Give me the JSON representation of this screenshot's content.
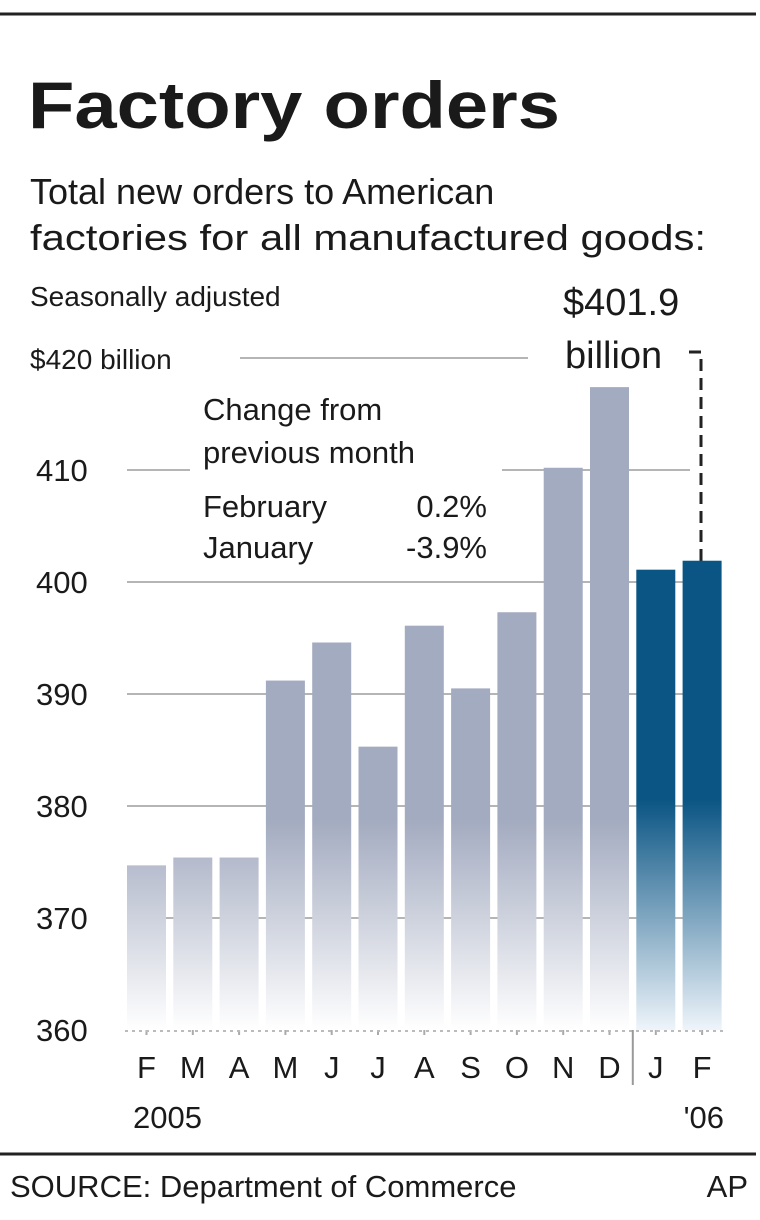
{
  "header": {
    "title": "Factory orders",
    "subtitle_line1": "Total new orders to American",
    "subtitle_line2": "factories for all manufactured goods:",
    "note": "Seasonally adjusted"
  },
  "callout": {
    "value": "$401.9",
    "unit": "billion"
  },
  "change_box": {
    "heading_line1": "Change from",
    "heading_line2": "previous month",
    "rows": [
      {
        "month": "February",
        "change": "0.2%"
      },
      {
        "month": "January",
        "change": "-3.9%"
      }
    ]
  },
  "footer": {
    "source": "SOURCE: Department of Commerce",
    "credit": "AP"
  },
  "chart_data": {
    "type": "bar",
    "title": "Factory orders",
    "ylabel": "$ billion",
    "ylim": [
      360,
      420
    ],
    "yticks": [
      360,
      370,
      380,
      390,
      400,
      410,
      420
    ],
    "ytick_labels": [
      "360",
      "370",
      "380",
      "390",
      "400",
      "410",
      "$420 billion"
    ],
    "categories": [
      "F",
      "M",
      "A",
      "M",
      "J",
      "J",
      "A",
      "S",
      "O",
      "N",
      "D",
      "J",
      "F"
    ],
    "year_labels": [
      "2005",
      "'06"
    ],
    "values": [
      374.7,
      375.4,
      375.4,
      391.2,
      394.6,
      385.3,
      396.1,
      390.5,
      397.3,
      410.2,
      417.4,
      401.1,
      401.9
    ],
    "highlight": [
      false,
      false,
      false,
      false,
      false,
      false,
      false,
      false,
      false,
      false,
      false,
      true,
      true
    ],
    "colors": {
      "base": "#a3abc0",
      "highlight": "#0b5584",
      "grid": "#b5b5b5"
    },
    "grid": true
  }
}
